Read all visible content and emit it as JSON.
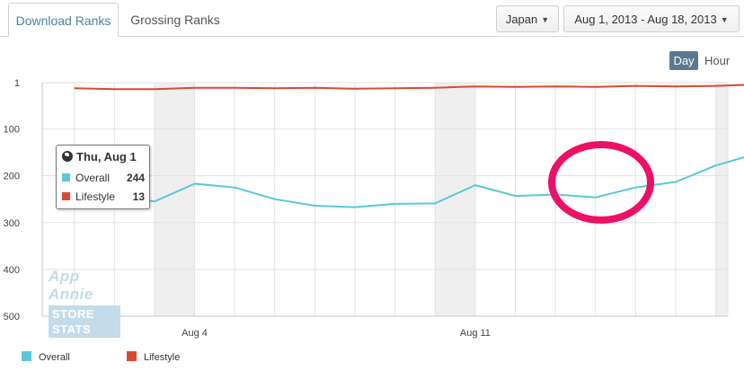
{
  "tabs": [
    {
      "label": "Download Ranks",
      "active": true
    },
    {
      "label": "Grossing Ranks",
      "active": false
    }
  ],
  "filters": {
    "country": "Japan",
    "date_range": "Aug 1, 2013 - Aug 18, 2013"
  },
  "granularity": {
    "day_label": "Day",
    "hour_label": "Hour",
    "selected": "Day"
  },
  "tooltip": {
    "title": "Thu, Aug 1",
    "rows": [
      {
        "label": "Overall",
        "value": "244"
      },
      {
        "label": "Lifestyle",
        "value": "13"
      }
    ]
  },
  "watermark": {
    "line1": "App Annie",
    "line2": "STORE STATS"
  },
  "legend": [
    {
      "label": "Overall",
      "color": "#5bc8d4"
    },
    {
      "label": "Lifestyle",
      "color": "#d94a32"
    }
  ],
  "chart_data": {
    "type": "line",
    "y_reversed": true,
    "ylim": [
      1,
      500
    ],
    "y_ticks": [
      1,
      100,
      200,
      300,
      400,
      500
    ],
    "x_ticks": [
      {
        "day": 4,
        "label": "Aug 4"
      },
      {
        "day": 11,
        "label": "Aug 11"
      }
    ],
    "x": [
      1,
      2,
      3,
      4,
      5,
      6,
      7,
      8,
      9,
      10,
      11,
      12,
      13,
      14,
      15,
      16,
      17,
      18
    ],
    "x_range": [
      0.2,
      17.3
    ],
    "series": [
      {
        "name": "Overall",
        "color": "#5bc8d4",
        "values": [
          244,
          242,
          255,
          217,
          225,
          250,
          264,
          267,
          260,
          259,
          220,
          243,
          240,
          246,
          225,
          213,
          178,
          153
        ]
      },
      {
        "name": "Lifestyle",
        "color": "#d94a32",
        "values": [
          13,
          15,
          15,
          12,
          12,
          13,
          12,
          14,
          13,
          12,
          9,
          10,
          9,
          10,
          8,
          9,
          8,
          5
        ]
      }
    ],
    "weekend_bands": [
      [
        3,
        4
      ],
      [
        10,
        11
      ],
      [
        17,
        18
      ]
    ],
    "grid": true
  }
}
